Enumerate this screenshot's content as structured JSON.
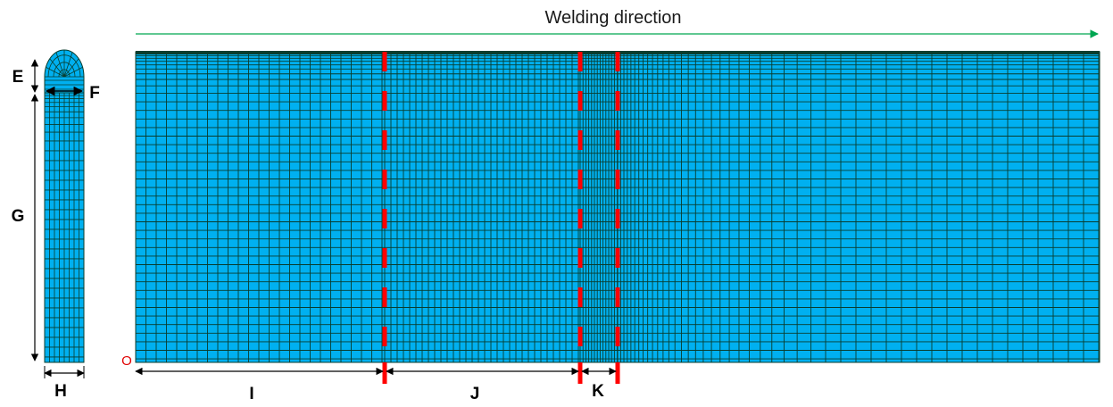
{
  "title": "Welding direction",
  "origin_label": "O",
  "dimension_labels": {
    "E": "E",
    "F": "F",
    "G": "G",
    "H": "H",
    "I": "I",
    "J": "J",
    "K": "K"
  },
  "colors": {
    "mesh_fill": "#00b0f0",
    "mesh_line": "#0a3d2e",
    "section_line": "#ff0000",
    "direction_arrow": "#00a651",
    "dimension_arrow": "#000000"
  }
}
